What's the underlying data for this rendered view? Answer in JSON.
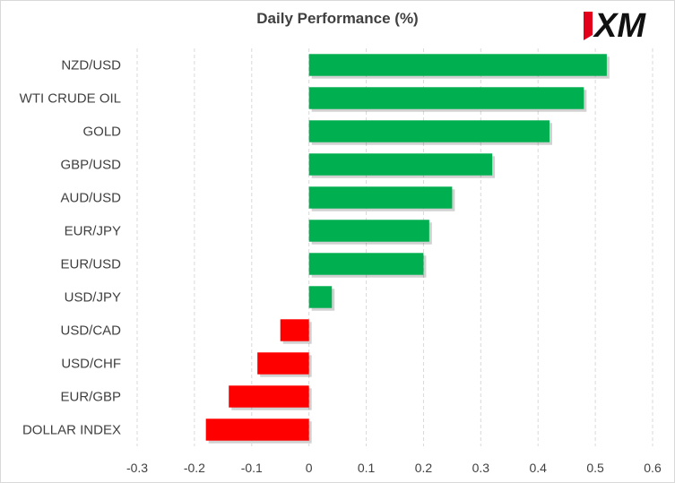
{
  "brand": {
    "logo_text": "XM",
    "logo_colors": {
      "mark": "#e3001b",
      "text": "#111111"
    }
  },
  "chart_data": {
    "type": "bar",
    "orientation": "horizontal",
    "title": "Daily Performance  (%)",
    "categories": [
      "NZD/USD",
      "WTI CRUDE OIL",
      "GOLD",
      "GBP/USD",
      "AUD/USD",
      "EUR/JPY",
      "EUR/USD",
      "USD/JPY",
      "USD/CAD",
      "USD/CHF",
      "EUR/GBP",
      "DOLLAR INDEX"
    ],
    "values": [
      0.52,
      0.48,
      0.42,
      0.32,
      0.25,
      0.21,
      0.2,
      0.04,
      -0.05,
      -0.09,
      -0.14,
      -0.18
    ],
    "xlim": [
      -0.3,
      0.6
    ],
    "xticks": [
      -0.3,
      -0.2,
      -0.1,
      0,
      0.1,
      0.2,
      0.3,
      0.4,
      0.5,
      0.6
    ],
    "xtick_labels": [
      "-0.3",
      "-0.2",
      "-0.1",
      "0",
      "0.1",
      "0.2",
      "0.3",
      "0.4",
      "0.5",
      "0.6"
    ],
    "grid": "vertical-dashed",
    "colors": {
      "positive": "#00b050",
      "negative": "#ff0000",
      "grid": "#d9d9d9",
      "label": "#404040"
    }
  }
}
